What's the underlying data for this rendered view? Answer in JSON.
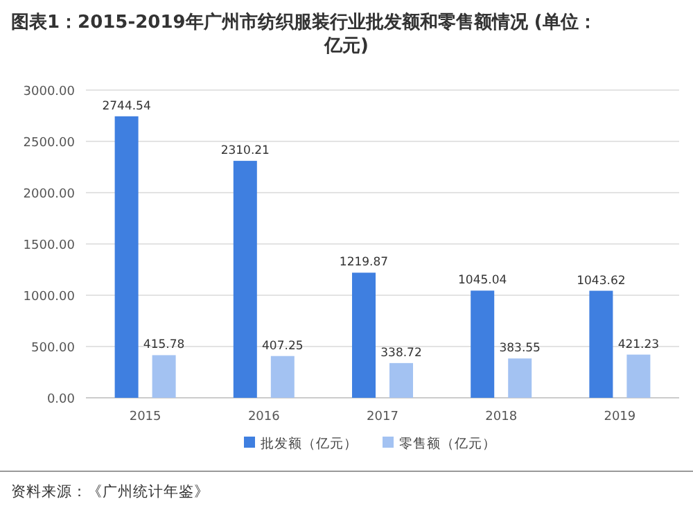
{
  "chart_data": {
    "type": "bar",
    "title": "图表1：2015-2019年广州市纺织服装行业批发额和零售额情况 (单位：亿元)",
    "categories": [
      "2015",
      "2016",
      "2017",
      "2018",
      "2019"
    ],
    "series": [
      {
        "name": "批发额（亿元）",
        "color": "#3f7fe0",
        "values": [
          2744.54,
          2310.21,
          1219.87,
          1045.04,
          1043.62
        ]
      },
      {
        "name": "零售额（亿元）",
        "color": "#a3c2f2",
        "values": [
          415.78,
          407.25,
          338.72,
          383.55,
          421.23
        ]
      }
    ],
    "ylim": [
      0,
      3000
    ],
    "yticks": [
      {
        "value": 0,
        "label": "0.00"
      },
      {
        "value": 500,
        "label": "500.00"
      },
      {
        "value": 1000,
        "label": "1000.00"
      },
      {
        "value": 1500,
        "label": "1500.00"
      },
      {
        "value": 2000,
        "label": "2000.00"
      },
      {
        "value": 2500,
        "label": "2500.00"
      },
      {
        "value": 3000,
        "label": "3000.00"
      }
    ],
    "grid": "y",
    "legend": "bottom",
    "data_labels": true,
    "annotations": [
      "资料来源：《广州统计年鉴》"
    ]
  }
}
